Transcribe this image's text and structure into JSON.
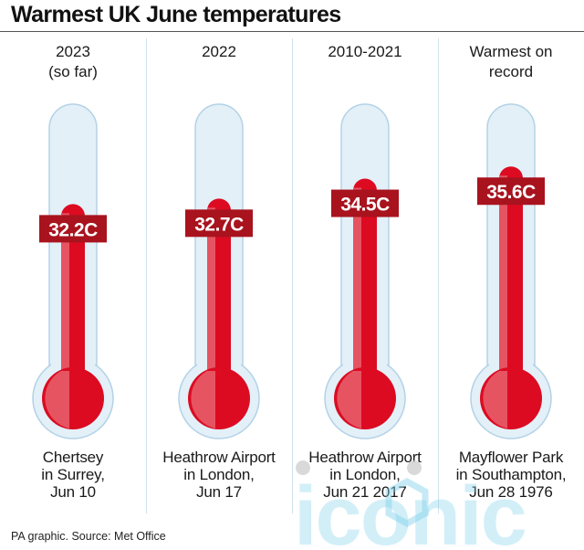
{
  "title": "Warmest UK June temperatures",
  "source": "PA graphic. Source: Met Office",
  "colors": {
    "mercury": "#dc0b22",
    "mercury_shadow": "#e86673",
    "label_bg": "#a8131e",
    "glass": "#e3f0f8",
    "glass_stroke": "#b3d2e6",
    "divider": "#cfe3ee"
  },
  "chart_data": {
    "type": "bar",
    "title": "Warmest UK June temperatures",
    "unit": "C",
    "categories": [
      "2023\n(so far)",
      "2022",
      "2010-2021",
      "Warmest on\nrecord"
    ],
    "values": [
      32.2,
      32.7,
      34.5,
      35.6
    ],
    "value_labels": [
      "32.2C",
      "32.7C",
      "34.5C",
      "35.6C"
    ],
    "locations": [
      "Chertsey\nin Surrey,\nJun 10",
      "Heathrow Airport\nin London,\nJun 17",
      "Heathrow Airport\nin London,\nJun 21 2017",
      "Mayflower Park\nin Southampton,\nJun 28 1976"
    ],
    "grid": false
  },
  "watermark": {
    "text": "iconic",
    "icon": "hexagon-logo-icon"
  }
}
